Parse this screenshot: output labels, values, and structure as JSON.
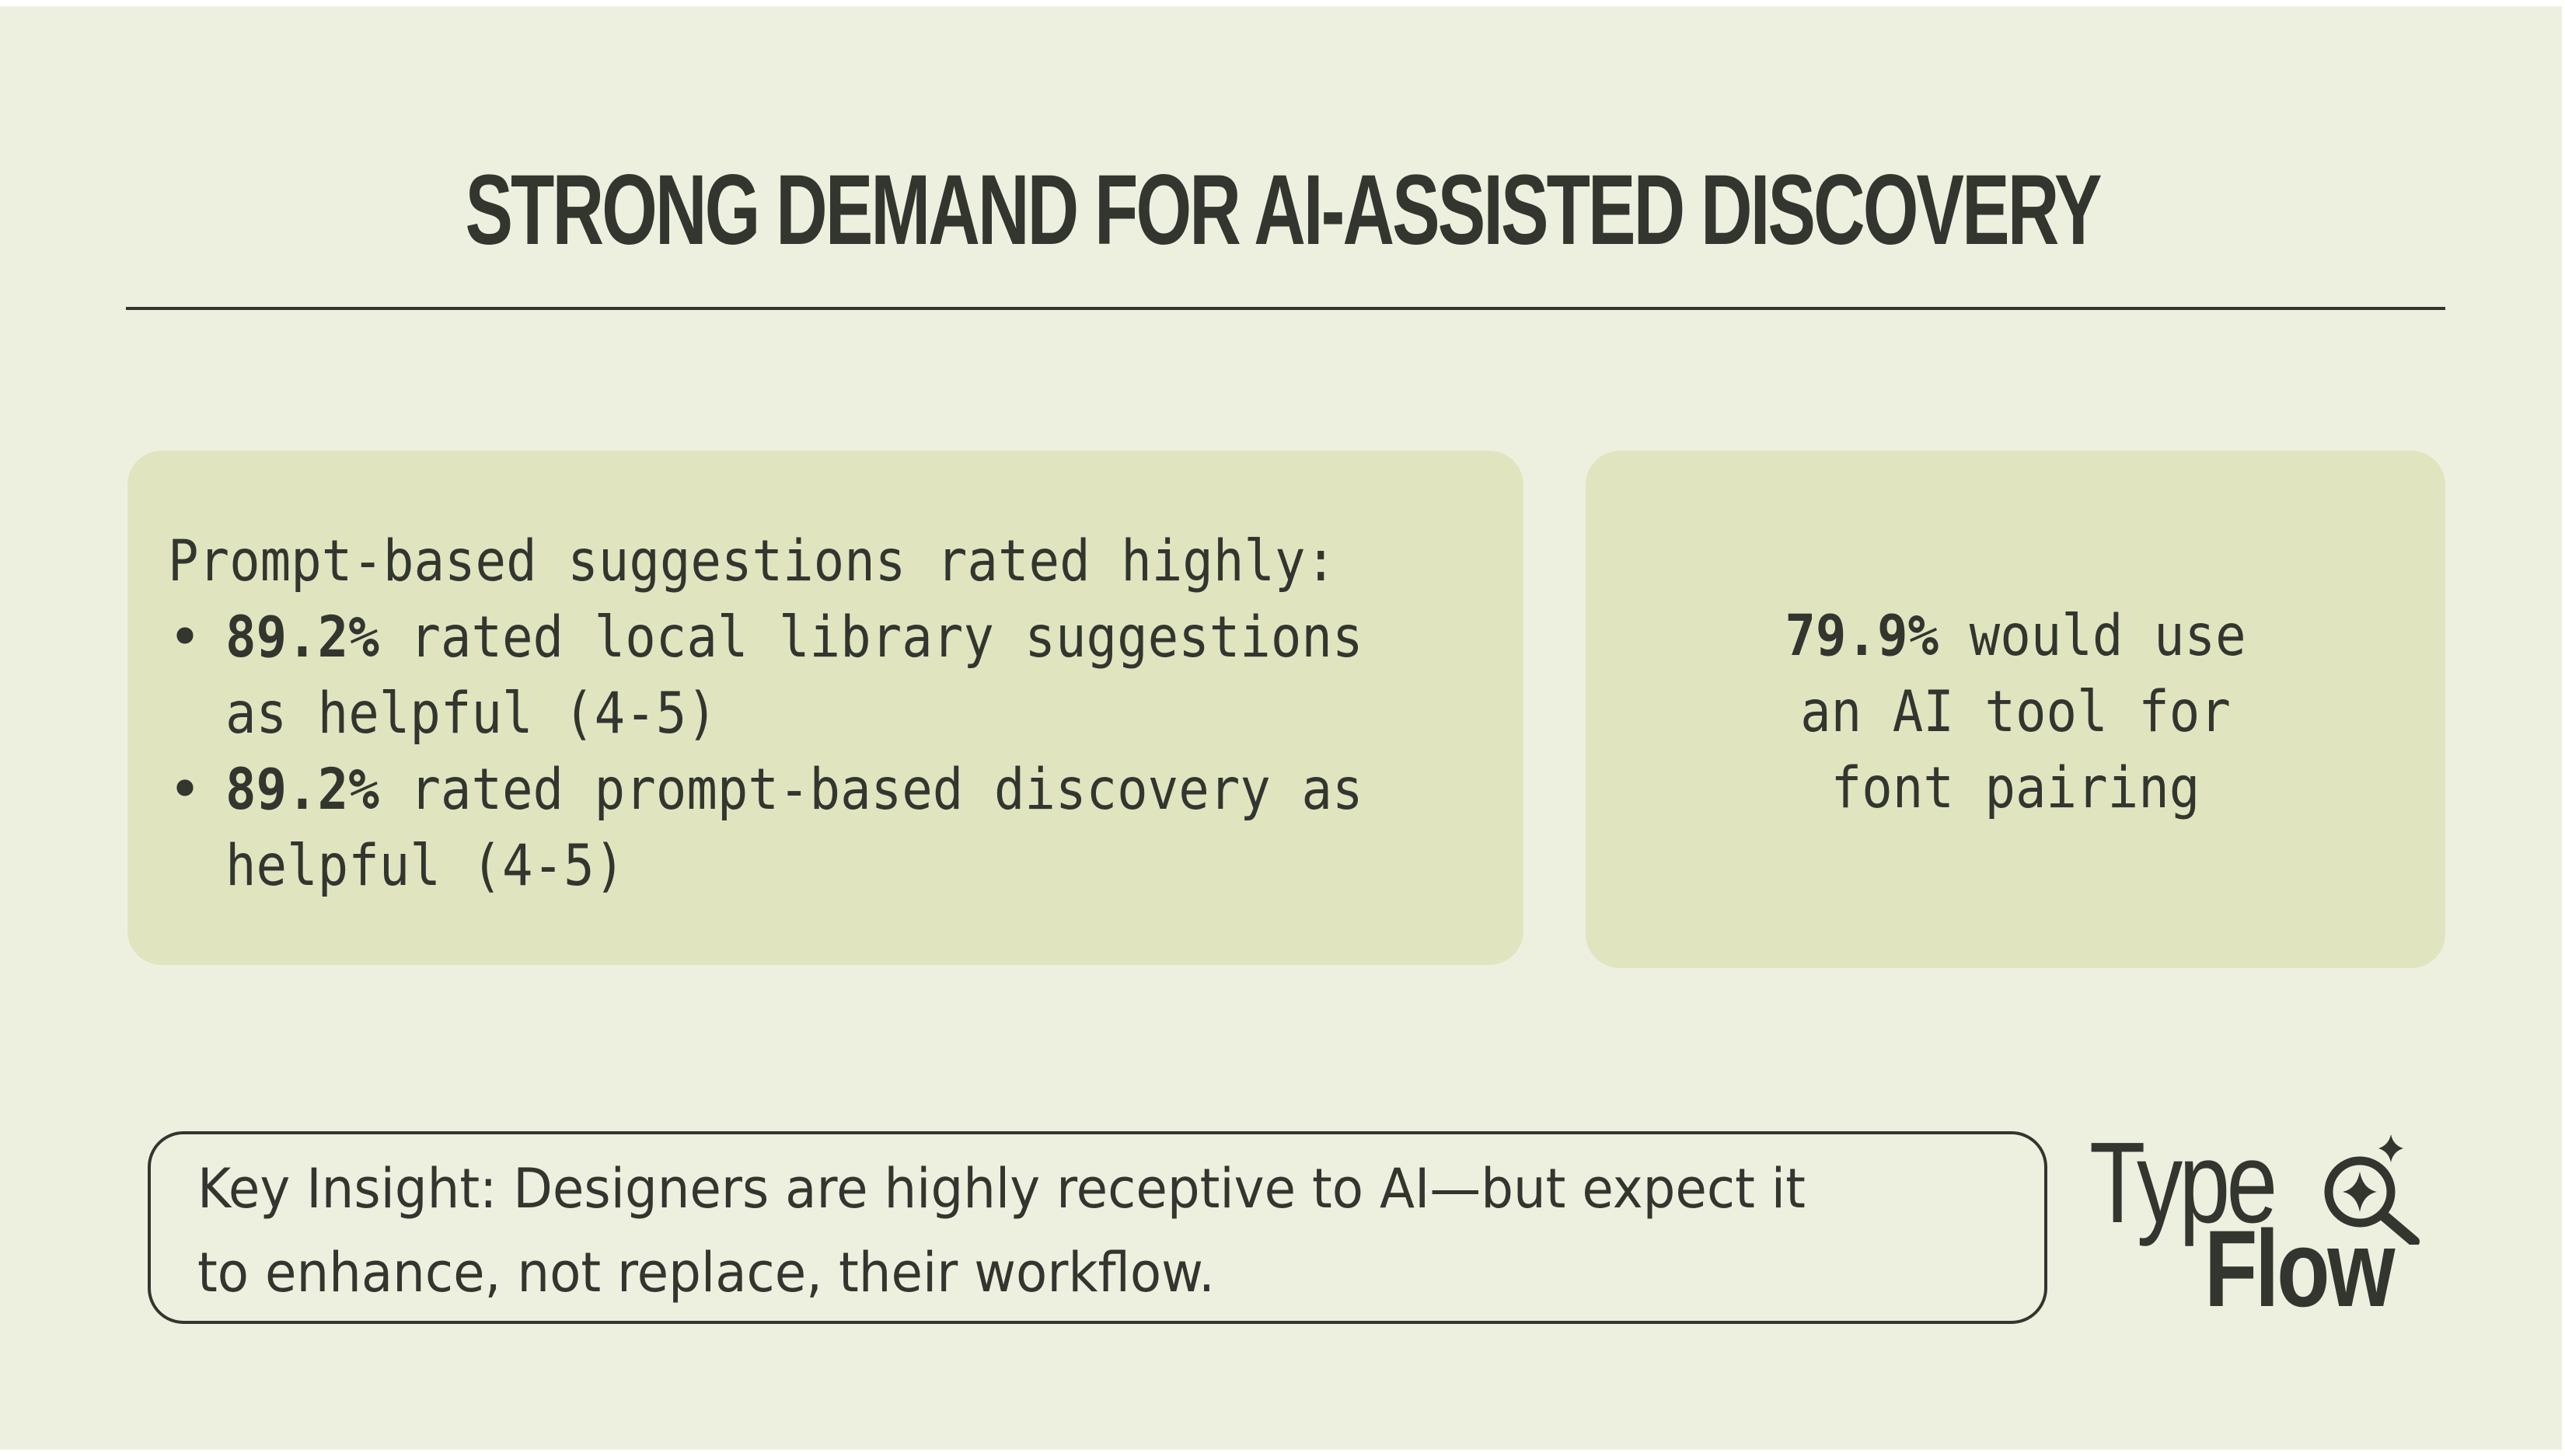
{
  "slide": {
    "title": "STRONG DEMAND FOR AI-ASSISTED DISCOVERY"
  },
  "left_card": {
    "heading": "Prompt-based suggestions rated highly:",
    "bullets": [
      {
        "stat": "89.2%",
        "line1_rest": " rated local library suggestions",
        "line2": "as helpful (4-5)"
      },
      {
        "stat": "89.2%",
        "line1_rest": " rated prompt-based discovery as",
        "line2": "helpful (4-5)"
      }
    ]
  },
  "right_card": {
    "stat": "79.9%",
    "line1_rest": " would use",
    "line2": "an AI tool for",
    "line3": "font pairing"
  },
  "insight": {
    "line1": "Key Insight: Designers are highly receptive to AI—but expect it",
    "line2": "to enhance, not replace, their workflow."
  },
  "logo": {
    "word1": "Type",
    "word2": "Flow",
    "icon": "magnifier-sparkle-icon"
  },
  "colors": {
    "background": "#eef0df",
    "card": "#e0e5c0",
    "text": "#33362f"
  }
}
